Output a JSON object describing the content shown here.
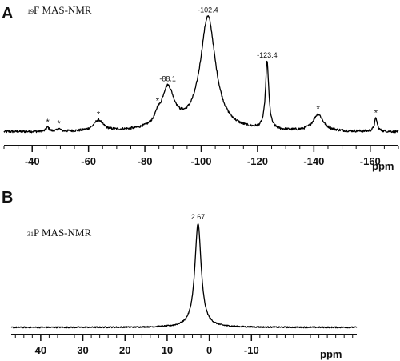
{
  "chart_data": [
    {
      "panel": "A",
      "type": "line",
      "title_nucleus_mass": "19",
      "title_text": "F MAS-NMR",
      "xlabel": "ppm",
      "xlim": [
        -30,
        -170
      ],
      "x_reversed": true,
      "x_ticks": [
        -40,
        -60,
        -80,
        -100,
        -120,
        -140,
        -160
      ],
      "x_tick_labels": [
        "-40",
        "-60",
        "-80",
        "-100",
        "-120",
        "-140",
        "-160"
      ],
      "y_axis_shown": false,
      "peaks": [
        {
          "x": -88.1,
          "label": "-88.1"
        },
        {
          "x": -102.4,
          "label": "-102.4"
        },
        {
          "x": -123.4,
          "label": "-123.4"
        }
      ],
      "spinning_sidebands": [
        {
          "x": -45.5,
          "label": "*"
        },
        {
          "x": -49.5,
          "label": "*"
        },
        {
          "x": -63.5,
          "label": "*"
        },
        {
          "x": -84.5,
          "label": "*"
        },
        {
          "x": -141.5,
          "label": "*"
        },
        {
          "x": -162.0,
          "label": "*"
        }
      ],
      "series": [
        {
          "components": [
            {
              "center": -102.4,
              "height": 0.95,
              "width": 3.3
            },
            {
              "center": -88.1,
              "height": 0.34,
              "width": 2.9
            },
            {
              "center": -123.4,
              "height": 0.56,
              "width": 0.7
            },
            {
              "center": -141.5,
              "height": 0.14,
              "width": 2.2
            },
            {
              "center": -63.5,
              "height": 0.09,
              "width": 2.0
            },
            {
              "center": -162.0,
              "height": 0.11,
              "width": 0.6
            },
            {
              "center": -84.5,
              "height": 0.05,
              "width": 0.8
            },
            {
              "center": -45.5,
              "height": 0.035,
              "width": 0.6
            },
            {
              "center": -49.5,
              "height": 0.02,
              "width": 0.6
            }
          ],
          "baseline": 0.0
        }
      ]
    },
    {
      "panel": "B",
      "type": "line",
      "title_nucleus_mass": "31",
      "title_text": "P MAS-NMR",
      "xlabel": "ppm",
      "xlim": [
        47,
        -35
      ],
      "x_reversed": true,
      "x_ticks": [
        40,
        30,
        20,
        10,
        0,
        -10
      ],
      "x_tick_labels": [
        "40",
        "30",
        "20",
        "10",
        "0",
        "-10"
      ],
      "y_axis_shown": false,
      "peaks": [
        {
          "x": 2.67,
          "label": "2.67"
        }
      ],
      "series": [
        {
          "components": [
            {
              "center": 2.67,
              "height": 1.0,
              "width": 0.9
            }
          ],
          "baseline": 0.0
        }
      ]
    }
  ]
}
